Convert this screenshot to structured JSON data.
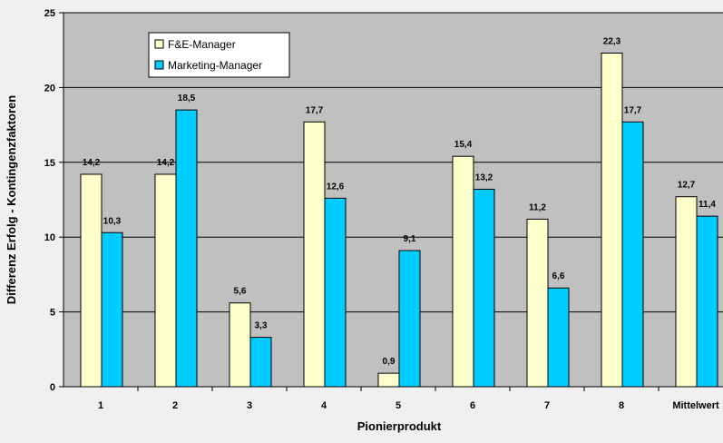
{
  "chart_data": {
    "type": "bar",
    "title": "",
    "xlabel": "Pionierprodukt",
    "ylabel": "Differenz Erfolg - Kontingenzfaktoren",
    "ylim": [
      0,
      25
    ],
    "yticks": [
      0,
      5,
      10,
      15,
      20,
      25
    ],
    "grid": true,
    "legend_position": "top-left",
    "categories": [
      "1",
      "2",
      "3",
      "4",
      "5",
      "6",
      "7",
      "8",
      "Mittelwert"
    ],
    "series": [
      {
        "name": "F&E-Manager",
        "color": "#ffffcc",
        "values": [
          14.2,
          14.2,
          5.6,
          17.7,
          0.9,
          15.4,
          11.2,
          22.3,
          12.7
        ],
        "labels": [
          "14,2",
          "14,2",
          "5,6",
          "17,7",
          "0,9",
          "15,4",
          "11,2",
          "22,3",
          "12,7"
        ]
      },
      {
        "name": "Marketing-Manager",
        "color": "#00ccff",
        "values": [
          10.3,
          18.5,
          3.3,
          12.6,
          9.1,
          13.2,
          6.6,
          17.7,
          11.4
        ],
        "labels": [
          "10,3",
          "18,5",
          "3,3",
          "12,6",
          "9,1",
          "13,2",
          "6,6",
          "17,7",
          "11,4"
        ]
      }
    ],
    "plot_background": "#c0c0c0"
  }
}
